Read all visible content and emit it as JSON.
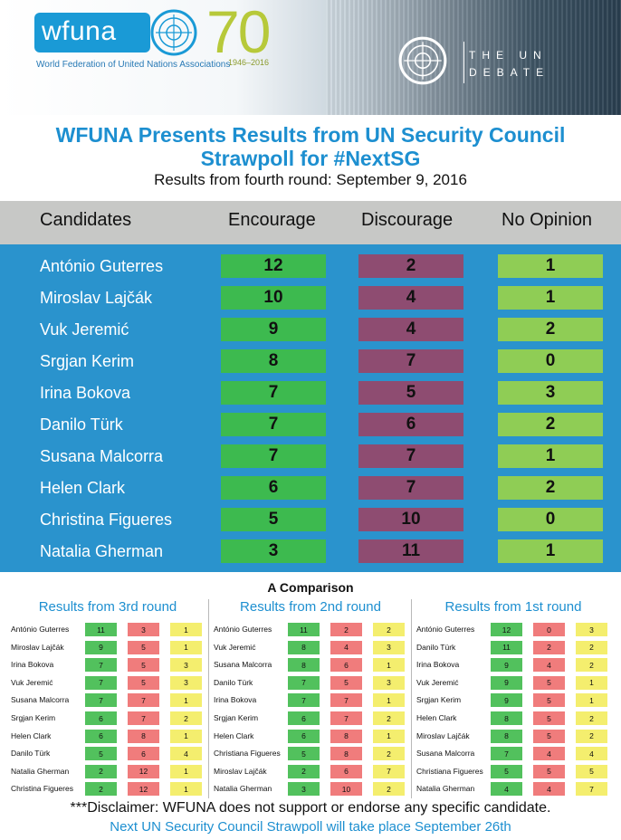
{
  "header": {
    "logo_text": "wfuna",
    "anniversary": "70",
    "years": "1946–2016",
    "org_name": "World Federation of United Nations Associations",
    "debate_line1": "THE UN",
    "debate_line2": "DEBATE"
  },
  "title_line1": "WFUNA Presents Results from UN Security Council",
  "title_line2": "Strawpoll for #NextSG",
  "subtitle": "Results from fourth round: September 9, 2016",
  "table": {
    "headers": [
      "Candidates",
      "Encourage",
      "Discourage",
      "No Opinion"
    ],
    "rows": [
      {
        "name": "António Guterres",
        "encourage": "12",
        "discourage": "2",
        "no_opinion": "1"
      },
      {
        "name": "Miroslav Lajčák",
        "encourage": "10",
        "discourage": "4",
        "no_opinion": "1"
      },
      {
        "name": "Vuk Jeremić",
        "encourage": "9",
        "discourage": "4",
        "no_opinion": "2"
      },
      {
        "name": "Srgjan Kerim",
        "encourage": "8",
        "discourage": "7",
        "no_opinion": "0"
      },
      {
        "name": "Irina Bokova",
        "encourage": "7",
        "discourage": "5",
        "no_opinion": "3"
      },
      {
        "name": "Danilo Türk",
        "encourage": "7",
        "discourage": "6",
        "no_opinion": "2"
      },
      {
        "name": "Susana Malcorra",
        "encourage": "7",
        "discourage": "7",
        "no_opinion": "1"
      },
      {
        "name": "Helen Clark",
        "encourage": "6",
        "discourage": "7",
        "no_opinion": "2"
      },
      {
        "name": "Christina Figueres",
        "encourage": "5",
        "discourage": "10",
        "no_opinion": "0"
      },
      {
        "name": "Natalia Gherman",
        "encourage": "3",
        "discourage": "11",
        "no_opinion": "1"
      }
    ]
  },
  "comparison": {
    "title": "A Comparison",
    "rounds": [
      {
        "title": "Results from 3rd round",
        "rows": [
          {
            "name": "António Guterres",
            "encourage": "11",
            "discourage": "3",
            "no_opinion": "1"
          },
          {
            "name": "Miroslav Lajčák",
            "encourage": "9",
            "discourage": "5",
            "no_opinion": "1"
          },
          {
            "name": "Irina Bokova",
            "encourage": "7",
            "discourage": "5",
            "no_opinion": "3"
          },
          {
            "name": "Vuk Jeremić",
            "encourage": "7",
            "discourage": "5",
            "no_opinion": "3"
          },
          {
            "name": "Susana Malcorra",
            "encourage": "7",
            "discourage": "7",
            "no_opinion": "1"
          },
          {
            "name": "Srgjan Kerim",
            "encourage": "6",
            "discourage": "7",
            "no_opinion": "2"
          },
          {
            "name": "Helen Clark",
            "encourage": "6",
            "discourage": "8",
            "no_opinion": "1"
          },
          {
            "name": "Danilo Türk",
            "encourage": "5",
            "discourage": "6",
            "no_opinion": "4"
          },
          {
            "name": "Natalia Gherman",
            "encourage": "2",
            "discourage": "12",
            "no_opinion": "1"
          },
          {
            "name": "Christina Figueres",
            "encourage": "2",
            "discourage": "12",
            "no_opinion": "1"
          }
        ]
      },
      {
        "title": "Results from 2nd round",
        "rows": [
          {
            "name": "António Guterres",
            "encourage": "11",
            "discourage": "2",
            "no_opinion": "2"
          },
          {
            "name": "Vuk Jeremić",
            "encourage": "8",
            "discourage": "4",
            "no_opinion": "3"
          },
          {
            "name": "Susana Malcorra",
            "encourage": "8",
            "discourage": "6",
            "no_opinion": "1"
          },
          {
            "name": "Danilo Türk",
            "encourage": "7",
            "discourage": "5",
            "no_opinion": "3"
          },
          {
            "name": "Irina Bokova",
            "encourage": "7",
            "discourage": "7",
            "no_opinion": "1"
          },
          {
            "name": "Srgjan Kerim",
            "encourage": "6",
            "discourage": "7",
            "no_opinion": "2"
          },
          {
            "name": "Helen Clark",
            "encourage": "6",
            "discourage": "8",
            "no_opinion": "1"
          },
          {
            "name": "Christiana Figueres",
            "encourage": "5",
            "discourage": "8",
            "no_opinion": "2"
          },
          {
            "name": "Miroslav Lajčák",
            "encourage": "2",
            "discourage": "6",
            "no_opinion": "7"
          },
          {
            "name": "Natalia Gherman",
            "encourage": "3",
            "discourage": "10",
            "no_opinion": "2"
          }
        ]
      },
      {
        "title": "Results from 1st round",
        "rows": [
          {
            "name": "António Guterres",
            "encourage": "12",
            "discourage": "0",
            "no_opinion": "3"
          },
          {
            "name": "Danilo Türk",
            "encourage": "11",
            "discourage": "2",
            "no_opinion": "2"
          },
          {
            "name": "Irina Bokova",
            "encourage": "9",
            "discourage": "4",
            "no_opinion": "2"
          },
          {
            "name": "Vuk Jeremić",
            "encourage": "9",
            "discourage": "5",
            "no_opinion": "1"
          },
          {
            "name": "Srgjan Kerim",
            "encourage": "9",
            "discourage": "5",
            "no_opinion": "1"
          },
          {
            "name": "Helen Clark",
            "encourage": "8",
            "discourage": "5",
            "no_opinion": "2"
          },
          {
            "name": "Miroslav Lajčák",
            "encourage": "8",
            "discourage": "5",
            "no_opinion": "2"
          },
          {
            "name": "Susana Malcorra",
            "encourage": "7",
            "discourage": "4",
            "no_opinion": "4"
          },
          {
            "name": "Christiana Figueres",
            "encourage": "5",
            "discourage": "5",
            "no_opinion": "5"
          },
          {
            "name": "Natalia Gherman",
            "encourage": "4",
            "discourage": "4",
            "no_opinion": "7"
          }
        ]
      }
    ]
  },
  "disclaimer": "***Disclaimer: WFUNA does not support or endorse any specific candidate.",
  "next_poll": "Next UN Security Council Strawpoll will take place September 26th",
  "colors": {
    "brand_blue": "#1d8fd0",
    "encourage": "#3dba4f",
    "discourage": "#8e4c71",
    "no_opinion": "#8fcd55",
    "small_encourage": "#52c15d",
    "small_discourage": "#f07c7c",
    "small_no_opinion": "#f4ee6e"
  }
}
